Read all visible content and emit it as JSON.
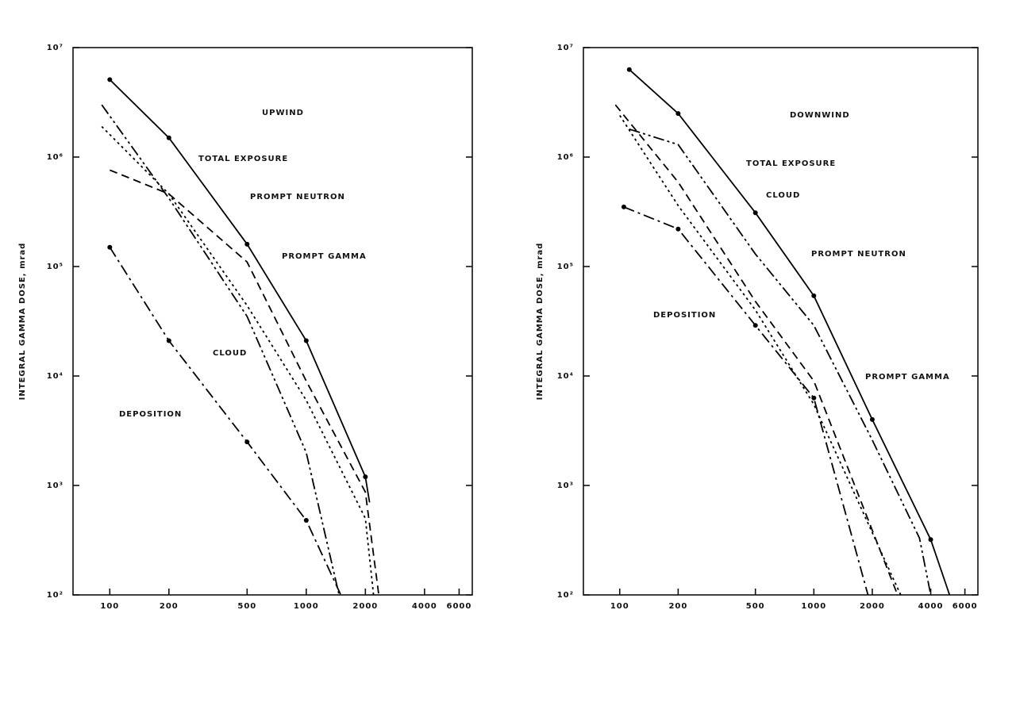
{
  "chart_data": [
    {
      "type": "line",
      "title": "UPWIND",
      "y_label": "INTEGRAL GAMMA DOSE, mrad",
      "xlog": true,
      "ylog": true,
      "xlim": [
        65,
        7000
      ],
      "ylim": [
        100,
        10000000
      ],
      "xticks": [
        100,
        200,
        500,
        1000,
        2000,
        4000,
        6000
      ],
      "yticks": [
        {
          "value": 100,
          "label": "10²"
        },
        {
          "value": 1000,
          "label": "10³"
        },
        {
          "value": 10000,
          "label": "10⁴"
        },
        {
          "value": 100000,
          "label": "10⁵"
        },
        {
          "value": 1000000,
          "label": "10⁶"
        },
        {
          "value": 10000000,
          "label": "10⁷"
        }
      ],
      "series": [
        {
          "name": "TOTAL EXPOSURE",
          "color": "#000000",
          "x": [
            100,
            200,
            500,
            1000,
            2000,
            2100
          ],
          "values": [
            5100000,
            1500000,
            160000,
            21000,
            1200,
            700
          ]
        },
        {
          "name": "PROMPT NEUTRON",
          "color": "#000000",
          "x": [
            100,
            200,
            500,
            1000,
            2000,
            2340
          ],
          "values": [
            760000,
            460000,
            110000,
            9000,
            870,
            100
          ]
        },
        {
          "name": "PROMPT GAMMA",
          "color": "#000000",
          "x": [
            91,
            200,
            500,
            1000,
            2000,
            2200
          ],
          "values": [
            1900000,
            460000,
            44000,
            6000,
            500,
            100
          ]
        },
        {
          "name": "CLOUD",
          "color": "#000000",
          "x": [
            91,
            200,
            500,
            1000,
            1470
          ],
          "values": [
            3000000,
            420000,
            35000,
            2000,
            100
          ]
        },
        {
          "name": "DEPOSITION",
          "color": "#000000",
          "x": [
            100,
            200,
            500,
            1000,
            1500
          ],
          "values": [
            150000,
            21000,
            2500,
            480,
            100
          ]
        }
      ]
    },
    {
      "type": "line",
      "title": "DOWNWIND",
      "y_label": "INTEGRAL GAMMA DOSE, mrad",
      "xlog": true,
      "ylog": true,
      "xlim": [
        65,
        7000
      ],
      "ylim": [
        100,
        10000000
      ],
      "xticks": [
        100,
        200,
        500,
        1000,
        2000,
        4000,
        6000
      ],
      "yticks": [
        {
          "value": 100,
          "label": "10²"
        },
        {
          "value": 1000,
          "label": "10³"
        },
        {
          "value": 10000,
          "label": "10⁴"
        },
        {
          "value": 100000,
          "label": "10⁵"
        },
        {
          "value": 1000000,
          "label": "10⁶"
        },
        {
          "value": 10000000,
          "label": "10⁷"
        }
      ],
      "series": [
        {
          "name": "TOTAL EXPOSURE",
          "color": "#000000",
          "x": [
            112,
            200,
            500,
            1000,
            2000,
            4000,
            5000
          ],
          "values": [
            6300000,
            2500000,
            310000,
            54000,
            4000,
            320,
            100
          ]
        },
        {
          "name": "PROMPT NEUTRON",
          "color": "#000000",
          "x": [
            95,
            200,
            500,
            1000,
            2700
          ],
          "values": [
            3000000,
            590000,
            48000,
            9000,
            100
          ]
        },
        {
          "name": "PROMPT GAMMA",
          "color": "#000000",
          "x": [
            100,
            200,
            500,
            1000,
            2800
          ],
          "values": [
            2400000,
            360000,
            40000,
            5500,
            100
          ]
        },
        {
          "name": "CLOUD",
          "color": "#000000",
          "x": [
            112,
            200,
            500,
            1000,
            2000,
            3500,
            4000
          ],
          "values": [
            1800000,
            1300000,
            130000,
            29000,
            2600,
            330,
            100
          ]
        },
        {
          "name": "DEPOSITION",
          "color": "#000000",
          "x": [
            105,
            200,
            500,
            1000,
            1900
          ],
          "values": [
            350000,
            220000,
            29000,
            6300,
            100
          ]
        }
      ]
    }
  ]
}
